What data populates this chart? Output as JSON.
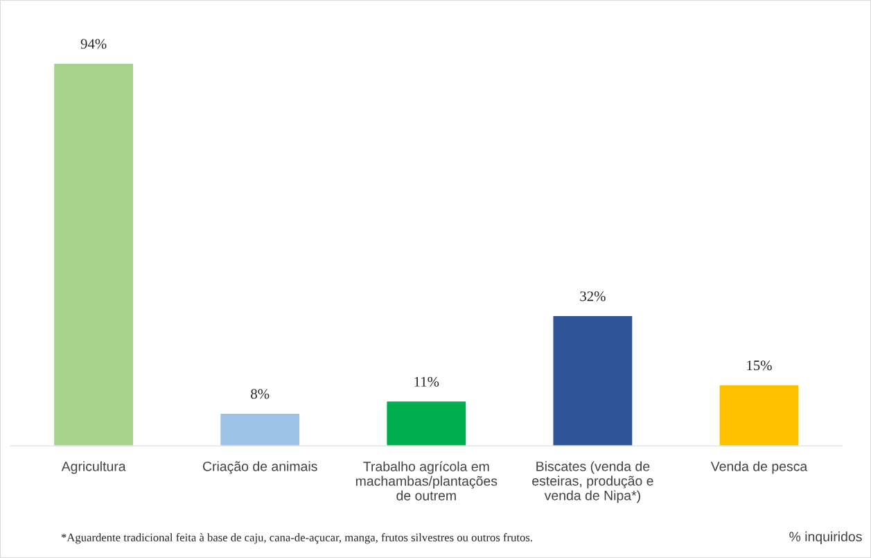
{
  "chart_data": {
    "type": "bar",
    "categories": [
      "Agricultura",
      "Criação de animais",
      "Trabalho agrícola em machambas/plantações de outrem",
      "Biscates (venda de esteiras, produção e venda de Nipa*)",
      "Venda de pesca"
    ],
    "values": [
      94,
      8,
      11,
      32,
      15
    ],
    "colors": [
      "#a9d18e",
      "#9dc3e6",
      "#00b050",
      "#2f5597",
      "#ffc000"
    ],
    "data_labels": true,
    "value_labels": [
      "94%",
      "8%",
      "11%",
      "32%",
      "15%"
    ],
    "grid": false,
    "legend": false,
    "annotations": [
      "*Aguardente tradicional feita à base de caju, cana-de-açucar, manga, frutos silvestres ou outros frutos.",
      "% inquiridos"
    ]
  }
}
